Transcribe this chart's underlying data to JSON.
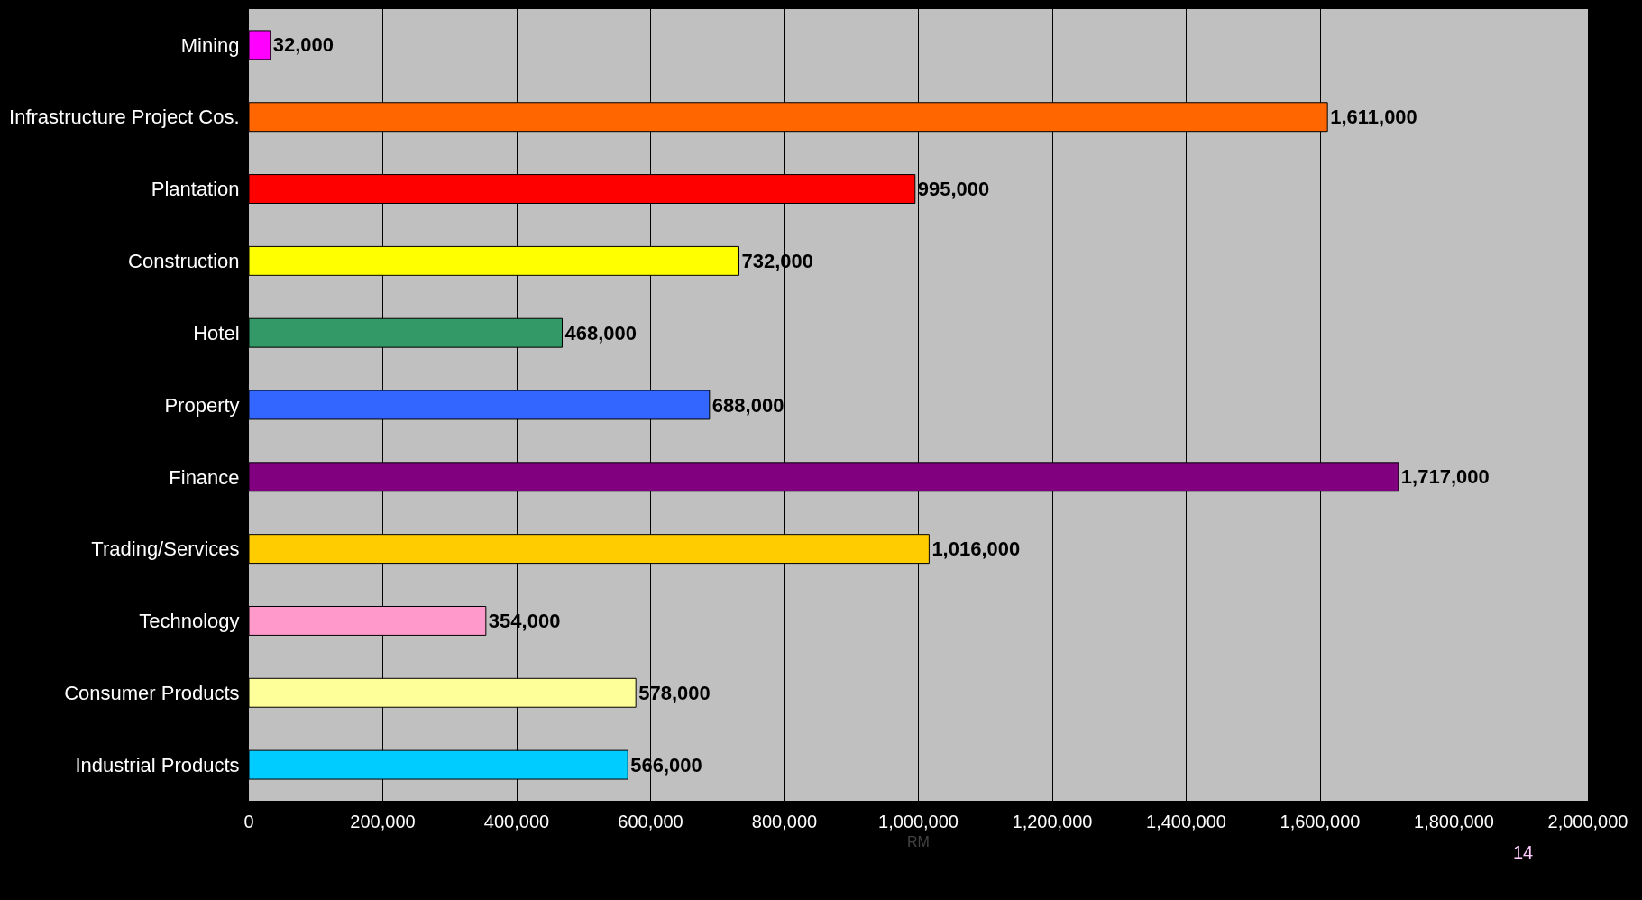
{
  "chart_data": {
    "type": "bar",
    "orientation": "horizontal",
    "xlabel": "RM",
    "categories": [
      "Mining",
      "Infrastructure Project Cos.",
      "Plantation",
      "Construction",
      "Hotel",
      "Property",
      "Finance",
      "Trading/Services",
      "Technology",
      "Consumer Products",
      "Industrial Products"
    ],
    "values": [
      32000,
      1611000,
      995000,
      732000,
      468000,
      688000,
      1717000,
      1016000,
      354000,
      578000,
      566000
    ],
    "colors": [
      "#ff00ff",
      "#ff6600",
      "#ff0000",
      "#ffff00",
      "#339966",
      "#3366ff",
      "#800080",
      "#ffcc00",
      "#ff99cc",
      "#ffff99",
      "#00ccff"
    ],
    "xlim": [
      0,
      2000000
    ],
    "xticks": [
      0,
      {
        "value": 200000,
        "label": "200,000"
      },
      {
        "value": 400000,
        "label": "400,000"
      },
      {
        "value": 600000,
        "label": "600,000"
      },
      {
        "value": 800000,
        "label": "800,000"
      },
      {
        "value": 1000000,
        "label": "1,000,000"
      },
      {
        "value": 1200000,
        "label": "1,200,000"
      },
      {
        "value": 1400000,
        "label": "1,400,000"
      },
      {
        "value": 1600000,
        "label": "1,600,000"
      },
      {
        "value": 1800000,
        "label": "1,800,000"
      },
      {
        "value": 2000000,
        "label": "2,000,000"
      }
    ],
    "value_labels": [
      "32,000",
      "1,611,000",
      "995,000",
      "732,000",
      "468,000",
      "688,000",
      "1,717,000",
      "1,016,000",
      "354,000",
      "578,000",
      "566,000"
    ],
    "grid": "x",
    "annotations": [
      "14"
    ]
  }
}
